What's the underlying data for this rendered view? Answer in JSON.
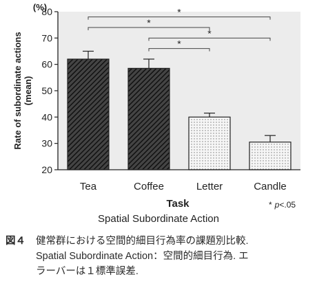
{
  "chart_data": {
    "type": "bar",
    "title": "",
    "subtitle": "Spatial Subordinate Action",
    "xlabel": "Task",
    "ylabel_line1": "Rate of subordinate actions",
    "ylabel_line2": "(mean)",
    "y_unit": "(%)",
    "ylim": [
      20,
      80
    ],
    "yticks": [
      20,
      30,
      40,
      50,
      60,
      70,
      80
    ],
    "grid": false,
    "categories": [
      "Tea",
      "Coffee",
      "Letter",
      "Candle"
    ],
    "values": [
      62,
      58.5,
      40,
      30.5
    ],
    "errors": [
      3,
      3.5,
      1.5,
      2.5
    ],
    "bar_styles": [
      "hatched",
      "hatched",
      "dotted",
      "dotted"
    ],
    "significance": [
      {
        "from": "Tea",
        "to": "Letter",
        "label": "*"
      },
      {
        "from": "Tea",
        "to": "Candle",
        "label": "*"
      },
      {
        "from": "Coffee",
        "to": "Letter",
        "label": "*"
      },
      {
        "from": "Coffee",
        "to": "Candle",
        "label": "*"
      }
    ],
    "note_symbol": "*",
    "note_p": "p",
    "note_threshold": "<.05",
    "colors": {
      "plot_bg": "#ececec",
      "hatched": "#333333",
      "dotted": "#f4f4f4",
      "axis": "#222222"
    }
  },
  "caption": {
    "id": "図４",
    "line1": "健常群における空間的細目行為率の課題別比較.",
    "line2": "Spatial Subordinate Action：空間的細目行為.  エ",
    "line3": "ラーバーは１標準誤差."
  }
}
